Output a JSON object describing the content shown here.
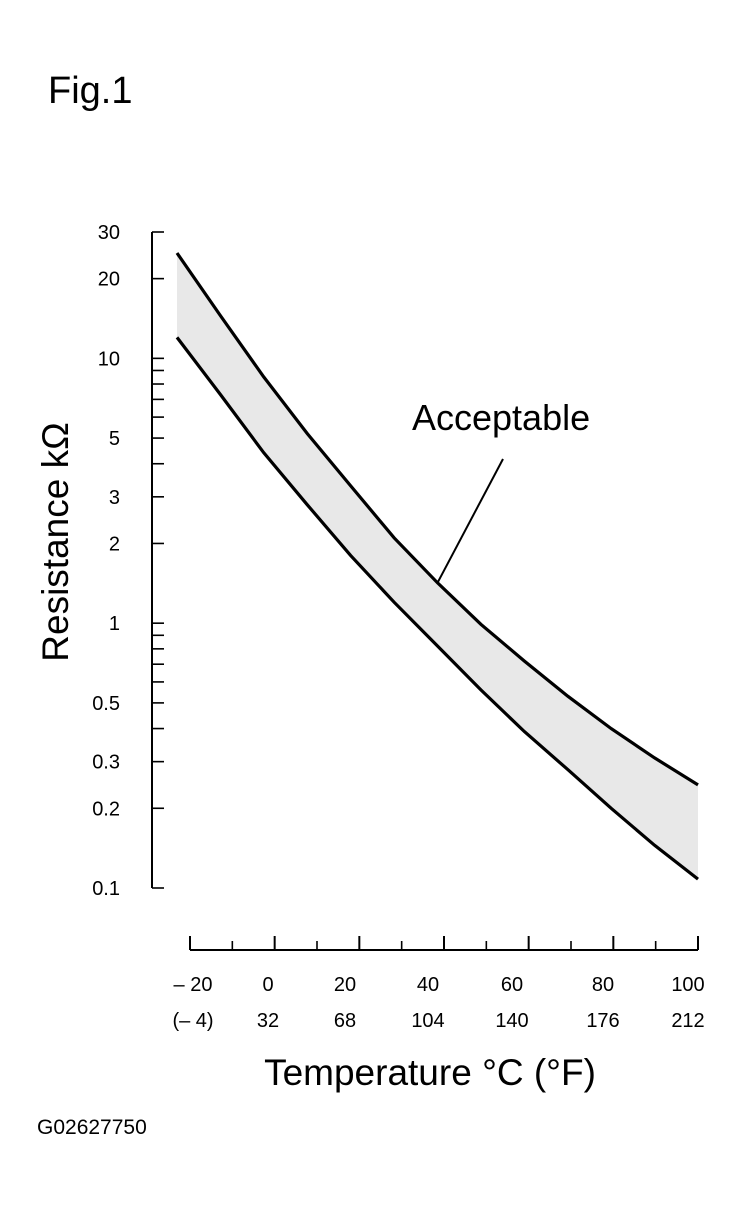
{
  "figure": {
    "title": "Fig.1",
    "code": "G02627750"
  },
  "chart_data": {
    "type": "line",
    "xlabel": "Temperature °C (°F)",
    "ylabel": "Resistance kΩ",
    "y_scale": "log",
    "xlim": [
      -20,
      100
    ],
    "ylim": [
      0.1,
      30
    ],
    "x_ticks": [
      {
        "c": "– 20",
        "f": "(– 4)"
      },
      {
        "c": "0",
        "f": "32"
      },
      {
        "c": "20",
        "f": "68"
      },
      {
        "c": "40",
        "f": "104"
      },
      {
        "c": "60",
        "f": "140"
      },
      {
        "c": "80",
        "f": "176"
      },
      {
        "c": "100",
        "f": "212"
      }
    ],
    "x_tick_values": [
      -20,
      0,
      20,
      40,
      60,
      80,
      100
    ],
    "y_tick_labels": [
      {
        "value": 30,
        "label": "30"
      },
      {
        "value": 20,
        "label": "20"
      },
      {
        "value": 10,
        "label": "10"
      },
      {
        "value": 5,
        "label": "5"
      },
      {
        "value": 3,
        "label": "3"
      },
      {
        "value": 2,
        "label": "2"
      },
      {
        "value": 1,
        "label": "1"
      },
      {
        "value": 0.5,
        "label": "0.5"
      },
      {
        "value": 0.3,
        "label": "0.3"
      },
      {
        "value": 0.2,
        "label": "0.2"
      },
      {
        "value": 0.1,
        "label": "0.1"
      }
    ],
    "y_minor_ticks": [
      30,
      20,
      10,
      9,
      8,
      7,
      6,
      5,
      4,
      3,
      2,
      1,
      0.9,
      0.8,
      0.7,
      0.6,
      0.5,
      0.4,
      0.3,
      0.2,
      0.1
    ],
    "series": [
      {
        "x": [
          -20,
          -10,
          0,
          10,
          20,
          30,
          40,
          50,
          60,
          70,
          80,
          90,
          100
        ],
        "y": [
          25,
          14.5,
          8.5,
          5.2,
          3.3,
          2.1,
          1.42,
          0.99,
          0.72,
          0.53,
          0.4,
          0.31,
          0.245
        ]
      },
      {
        "x": [
          -20,
          -10,
          0,
          10,
          20,
          30,
          40,
          50,
          60,
          70,
          80,
          90,
          100
        ],
        "y": [
          12,
          7.3,
          4.4,
          2.8,
          1.8,
          1.2,
          0.82,
          0.56,
          0.39,
          0.28,
          0.2,
          0.145,
          0.108
        ]
      }
    ],
    "annotation": {
      "text": "Acceptable",
      "x": 40,
      "y": 1.42
    },
    "grid": false,
    "legend": "none"
  }
}
